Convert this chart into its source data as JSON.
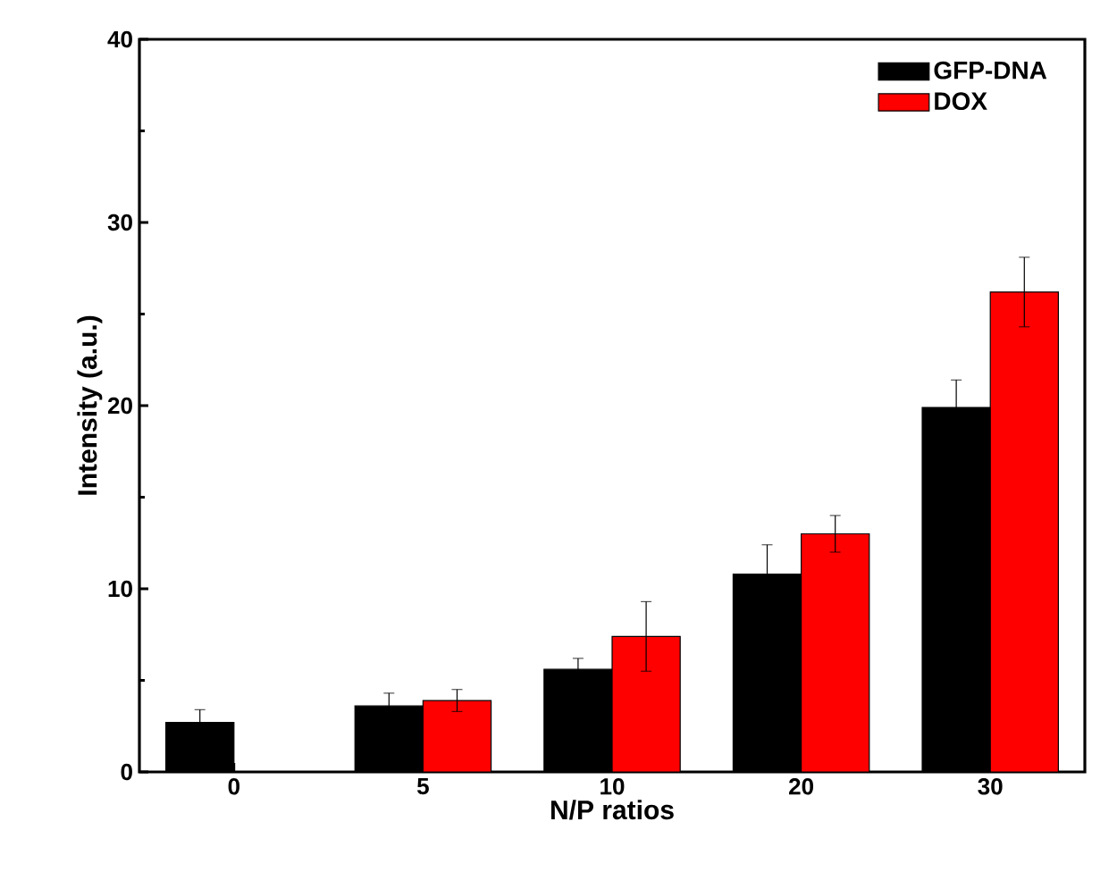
{
  "chart_data": {
    "type": "bar",
    "xlabel": "N/P ratios",
    "ylabel": "Intensity (a.u.)",
    "categories": [
      "0",
      "5",
      "10",
      "20",
      "30"
    ],
    "series": [
      {
        "name": "GFP-DNA",
        "color": "#000000",
        "values": [
          2.7,
          3.6,
          5.6,
          10.8,
          19.9
        ],
        "errors": [
          0.7,
          0.7,
          0.6,
          1.6,
          1.5
        ]
      },
      {
        "name": "DOX",
        "color": "#ff0000",
        "values": [
          null,
          3.9,
          7.4,
          13.0,
          26.2
        ],
        "errors": [
          null,
          0.6,
          1.9,
          1.0,
          1.9
        ]
      }
    ],
    "ylim": [
      0,
      40
    ],
    "yticks": [
      0,
      10,
      20,
      30,
      40
    ],
    "legend": "top right",
    "grid": false
  }
}
